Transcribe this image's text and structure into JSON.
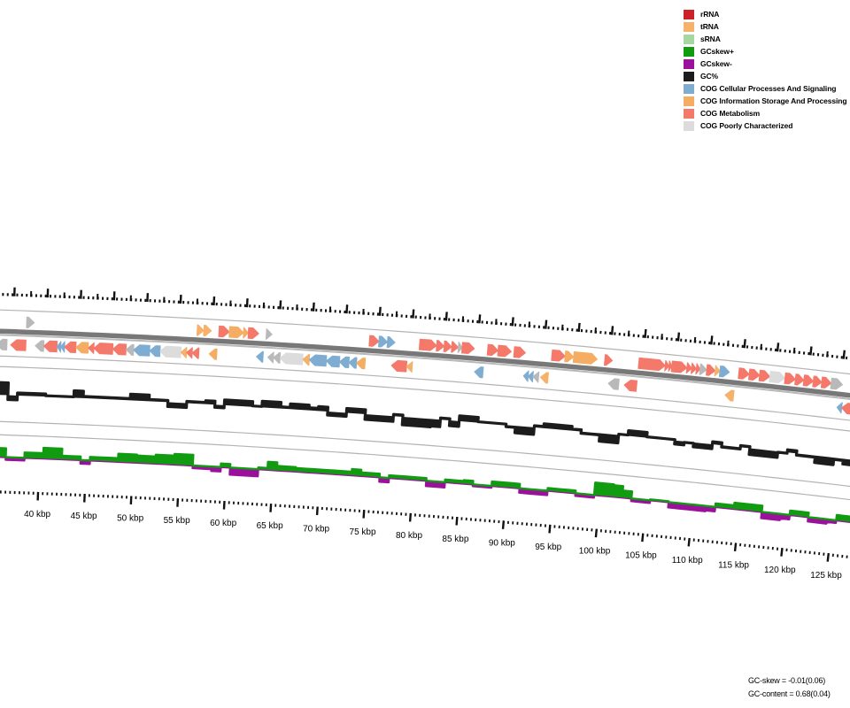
{
  "legend": {
    "items": [
      {
        "label": "rRNA",
        "color_key": "rrna"
      },
      {
        "label": "tRNA",
        "color_key": "trna"
      },
      {
        "label": "sRNA",
        "color_key": "srna"
      },
      {
        "label": "GCskew+",
        "color_key": "skew_plus"
      },
      {
        "label": "GCskew-",
        "color_key": "skew_minus"
      },
      {
        "label": "GC%",
        "color_key": "gc"
      },
      {
        "label": "COG Cellular Processes And Signaling",
        "color_key": "cps"
      },
      {
        "label": "COG Information Storage And Processing",
        "color_key": "info"
      },
      {
        "label": "COG Metabolism",
        "color_key": "met"
      },
      {
        "label": "COG Poorly Characterized",
        "color_key": "poor"
      }
    ]
  },
  "stats": {
    "gc_skew": "GC-skew = -0.01(0.06)",
    "gc_content": "GC-content = 0.68(0.04)"
  },
  "palette": {
    "rrna": "#cb2127",
    "trna": "#f6b26b",
    "srna": "#a7d7a0",
    "skew_plus": "#119b11",
    "skew_minus": "#9b119b",
    "gc": "#1c1c1c",
    "cps": "#7fadd2",
    "info": "#f5ad63",
    "met": "#f4796b",
    "poor": "#dcdcdc",
    "uncat": "#b9b9b9",
    "backbone": "#787878",
    "backbone_edge": "#b8b8b8",
    "boundary": "#b3b3b3",
    "tick": "#111111"
  },
  "ruler": {
    "unit_suffix": " kbp",
    "major_labels": [
      40,
      45,
      50,
      55,
      60,
      65,
      70,
      75,
      80,
      85,
      90,
      95,
      100,
      105,
      110,
      115,
      120,
      125
    ],
    "label_step_kbp": 5,
    "minor_step_kbp": 0.5,
    "outer_major_step_kbp": 3.5,
    "visible_start_kbp": 34.9,
    "visible_end_kbp": 127.6
  },
  "genes": {
    "forward": [
      {
        "s": 38.1,
        "e": 38.9,
        "c": "uncat"
      },
      {
        "s": 56.1,
        "e": 56.8,
        "c": "trna"
      },
      {
        "s": 56.8,
        "e": 57.6,
        "c": "trna"
      },
      {
        "s": 58.4,
        "e": 59.5,
        "c": "met"
      },
      {
        "s": 59.5,
        "e": 61.0,
        "c": "info"
      },
      {
        "s": 61.0,
        "e": 61.5,
        "c": "info"
      },
      {
        "s": 61.5,
        "e": 62.6,
        "c": "met"
      },
      {
        "s": 63.4,
        "e": 64.0,
        "c": "uncat"
      },
      {
        "s": 74.3,
        "e": 75.3,
        "c": "met"
      },
      {
        "s": 75.3,
        "e": 76.2,
        "c": "cps"
      },
      {
        "s": 76.2,
        "e": 77.0,
        "c": "cps"
      },
      {
        "s": 79.6,
        "e": 81.4,
        "c": "met"
      },
      {
        "s": 81.4,
        "e": 82.2,
        "c": "met"
      },
      {
        "s": 82.2,
        "e": 83.0,
        "c": "met"
      },
      {
        "s": 83.0,
        "e": 83.7,
        "c": "met"
      },
      {
        "s": 83.7,
        "e": 84.1,
        "c": "uncat"
      },
      {
        "s": 84.1,
        "e": 85.4,
        "c": "met"
      },
      {
        "s": 86.8,
        "e": 87.9,
        "c": "met"
      },
      {
        "s": 87.9,
        "e": 89.3,
        "c": "met"
      },
      {
        "s": 89.6,
        "e": 90.8,
        "c": "met"
      },
      {
        "s": 93.6,
        "e": 95.0,
        "c": "met"
      },
      {
        "s": 95.0,
        "e": 95.9,
        "c": "info"
      },
      {
        "s": 95.9,
        "e": 98.4,
        "c": "info"
      },
      {
        "s": 99.2,
        "e": 100.0,
        "c": "met"
      },
      {
        "s": 102.8,
        "e": 105.6,
        "c": "met"
      },
      {
        "s": 105.6,
        "e": 106.0,
        "c": "met"
      },
      {
        "s": 106.0,
        "e": 106.3,
        "c": "met"
      },
      {
        "s": 106.3,
        "e": 107.9,
        "c": "met"
      },
      {
        "s": 107.9,
        "e": 108.4,
        "c": "met"
      },
      {
        "s": 108.4,
        "e": 108.9,
        "c": "met"
      },
      {
        "s": 108.9,
        "e": 109.3,
        "c": "met"
      },
      {
        "s": 109.3,
        "e": 110.0,
        "c": "uncat"
      },
      {
        "s": 110.0,
        "e": 110.9,
        "c": "met"
      },
      {
        "s": 110.9,
        "e": 111.4,
        "c": "trna"
      },
      {
        "s": 111.4,
        "e": 112.4,
        "c": "cps"
      },
      {
        "s": 113.4,
        "e": 114.5,
        "c": "met"
      },
      {
        "s": 114.5,
        "e": 115.6,
        "c": "met"
      },
      {
        "s": 115.6,
        "e": 116.7,
        "c": "met"
      },
      {
        "s": 116.7,
        "e": 118.3,
        "c": "poor"
      },
      {
        "s": 118.3,
        "e": 119.4,
        "c": "met"
      },
      {
        "s": 119.4,
        "e": 120.3,
        "c": "met"
      },
      {
        "s": 120.3,
        "e": 121.3,
        "c": "met"
      },
      {
        "s": 121.3,
        "e": 122.2,
        "c": "met"
      },
      {
        "s": 122.2,
        "e": 123.2,
        "c": "met"
      },
      {
        "s": 123.2,
        "e": 124.4,
        "c": "uncat"
      }
    ],
    "reverse": [
      {
        "s": 35.0,
        "e": 36.1,
        "c": "uncat"
      },
      {
        "s": 36.5,
        "e": 38.1,
        "c": "met"
      },
      {
        "s": 39.1,
        "e": 40.0,
        "c": "uncat"
      },
      {
        "s": 40.0,
        "e": 41.4,
        "c": "met"
      },
      {
        "s": 41.4,
        "e": 41.8,
        "c": "cps"
      },
      {
        "s": 41.8,
        "e": 42.2,
        "c": "cps"
      },
      {
        "s": 42.2,
        "e": 43.4,
        "c": "met"
      },
      {
        "s": 43.4,
        "e": 44.7,
        "c": "info"
      },
      {
        "s": 44.7,
        "e": 45.3,
        "c": "met"
      },
      {
        "s": 45.3,
        "e": 47.3,
        "c": "met"
      },
      {
        "s": 47.3,
        "e": 48.7,
        "c": "met"
      },
      {
        "s": 48.7,
        "e": 49.5,
        "c": "uncat"
      },
      {
        "s": 49.5,
        "e": 51.2,
        "c": "cps"
      },
      {
        "s": 51.2,
        "e": 52.3,
        "c": "cps"
      },
      {
        "s": 52.3,
        "e": 54.5,
        "c": "poor"
      },
      {
        "s": 54.5,
        "e": 55.1,
        "c": "trna"
      },
      {
        "s": 55.1,
        "e": 55.7,
        "c": "met"
      },
      {
        "s": 55.7,
        "e": 56.4,
        "c": "met"
      },
      {
        "s": 57.5,
        "e": 58.3,
        "c": "info"
      },
      {
        "s": 62.5,
        "e": 63.2,
        "c": "cps"
      },
      {
        "s": 63.7,
        "e": 64.3,
        "c": "uncat"
      },
      {
        "s": 64.3,
        "e": 65.0,
        "c": "uncat"
      },
      {
        "s": 65.0,
        "e": 67.4,
        "c": "poor"
      },
      {
        "s": 67.4,
        "e": 68.1,
        "c": "trna"
      },
      {
        "s": 68.1,
        "e": 69.9,
        "c": "cps"
      },
      {
        "s": 69.9,
        "e": 71.3,
        "c": "cps"
      },
      {
        "s": 71.3,
        "e": 72.3,
        "c": "cps"
      },
      {
        "s": 72.3,
        "e": 73.1,
        "c": "cps"
      },
      {
        "s": 73.1,
        "e": 74.0,
        "c": "info"
      },
      {
        "s": 76.8,
        "e": 78.4,
        "c": "met"
      },
      {
        "s": 78.4,
        "e": 79.0,
        "c": "trna"
      },
      {
        "s": 85.6,
        "e": 86.5,
        "c": "cps"
      },
      {
        "s": 90.8,
        "e": 91.3,
        "c": "cps"
      },
      {
        "s": 91.3,
        "e": 91.8,
        "c": "cps"
      },
      {
        "s": 91.8,
        "e": 92.4,
        "c": "uncat"
      },
      {
        "s": 92.6,
        "e": 93.4,
        "c": "trna"
      },
      {
        "s": 99.8,
        "e": 100.9,
        "c": "uncat"
      },
      {
        "s": 101.5,
        "e": 102.8,
        "c": "met"
      },
      {
        "s": 112.2,
        "e": 113.1,
        "c": "trna"
      },
      {
        "s": 124.1,
        "e": 124.6,
        "c": "cps"
      },
      {
        "s": 124.6,
        "e": 125.6,
        "c": "met"
      }
    ]
  },
  "chart_data": [
    {
      "type": "area",
      "name": "GC% deviation track (mean 0.68, sd 0.04)",
      "color_key": "gc",
      "start_kbp": 35.4,
      "step_kbp": 1,
      "values": [
        14,
        -5,
        3,
        3,
        3,
        1,
        1,
        1,
        8,
        2,
        2,
        2,
        2,
        2,
        7,
        7,
        2,
        2,
        -5,
        -5,
        2,
        2,
        4,
        -3,
        6,
        6,
        6,
        1,
        7,
        7,
        2,
        6,
        6,
        3,
        5,
        -4,
        -4,
        5,
        5,
        -6,
        -6,
        -6,
        2,
        -9,
        -9,
        -9,
        -8,
        2,
        -6,
        6,
        6,
        1,
        1,
        1,
        -2,
        -8,
        -8,
        2,
        5,
        5,
        5,
        2,
        -2,
        -2,
        -9,
        -9,
        1,
        6,
        6,
        1,
        1,
        1,
        -4,
        -1,
        -5,
        -5,
        3,
        -2,
        -2,
        2,
        -7,
        -7,
        -7,
        -1,
        3,
        -2,
        -2,
        -8,
        -8,
        -2,
        -6,
        -6
      ]
    },
    {
      "type": "area",
      "name": "GC-skew deviation track (mean -0.01, sd 0.06; positive green, negative purple)",
      "color_pos_key": "skew_plus",
      "color_neg_key": "skew_minus",
      "start_kbp": 35.4,
      "step_kbp": 1,
      "values": [
        10,
        -3,
        -3,
        6,
        6,
        12,
        12,
        4,
        4,
        -4,
        4,
        4,
        4,
        9,
        9,
        8,
        8,
        10,
        10,
        12,
        12,
        -3,
        -3,
        -5,
        4,
        -8,
        -8,
        -8,
        2,
        9,
        5,
        5,
        4,
        4,
        4,
        4,
        4,
        4,
        7,
        4,
        4,
        -5,
        3,
        3,
        3,
        3,
        -6,
        -6,
        3,
        3,
        4,
        -2,
        -2,
        5,
        5,
        5,
        -5,
        -5,
        -5,
        3,
        3,
        3,
        -3,
        -3,
        14,
        14,
        13,
        8,
        -3,
        -3,
        1,
        1,
        -6,
        -6,
        -6,
        -6,
        -5,
        4,
        4,
        7,
        7,
        7,
        -7,
        -7,
        -5,
        5,
        5,
        -5,
        -5,
        -3,
        6,
        6
      ]
    }
  ]
}
